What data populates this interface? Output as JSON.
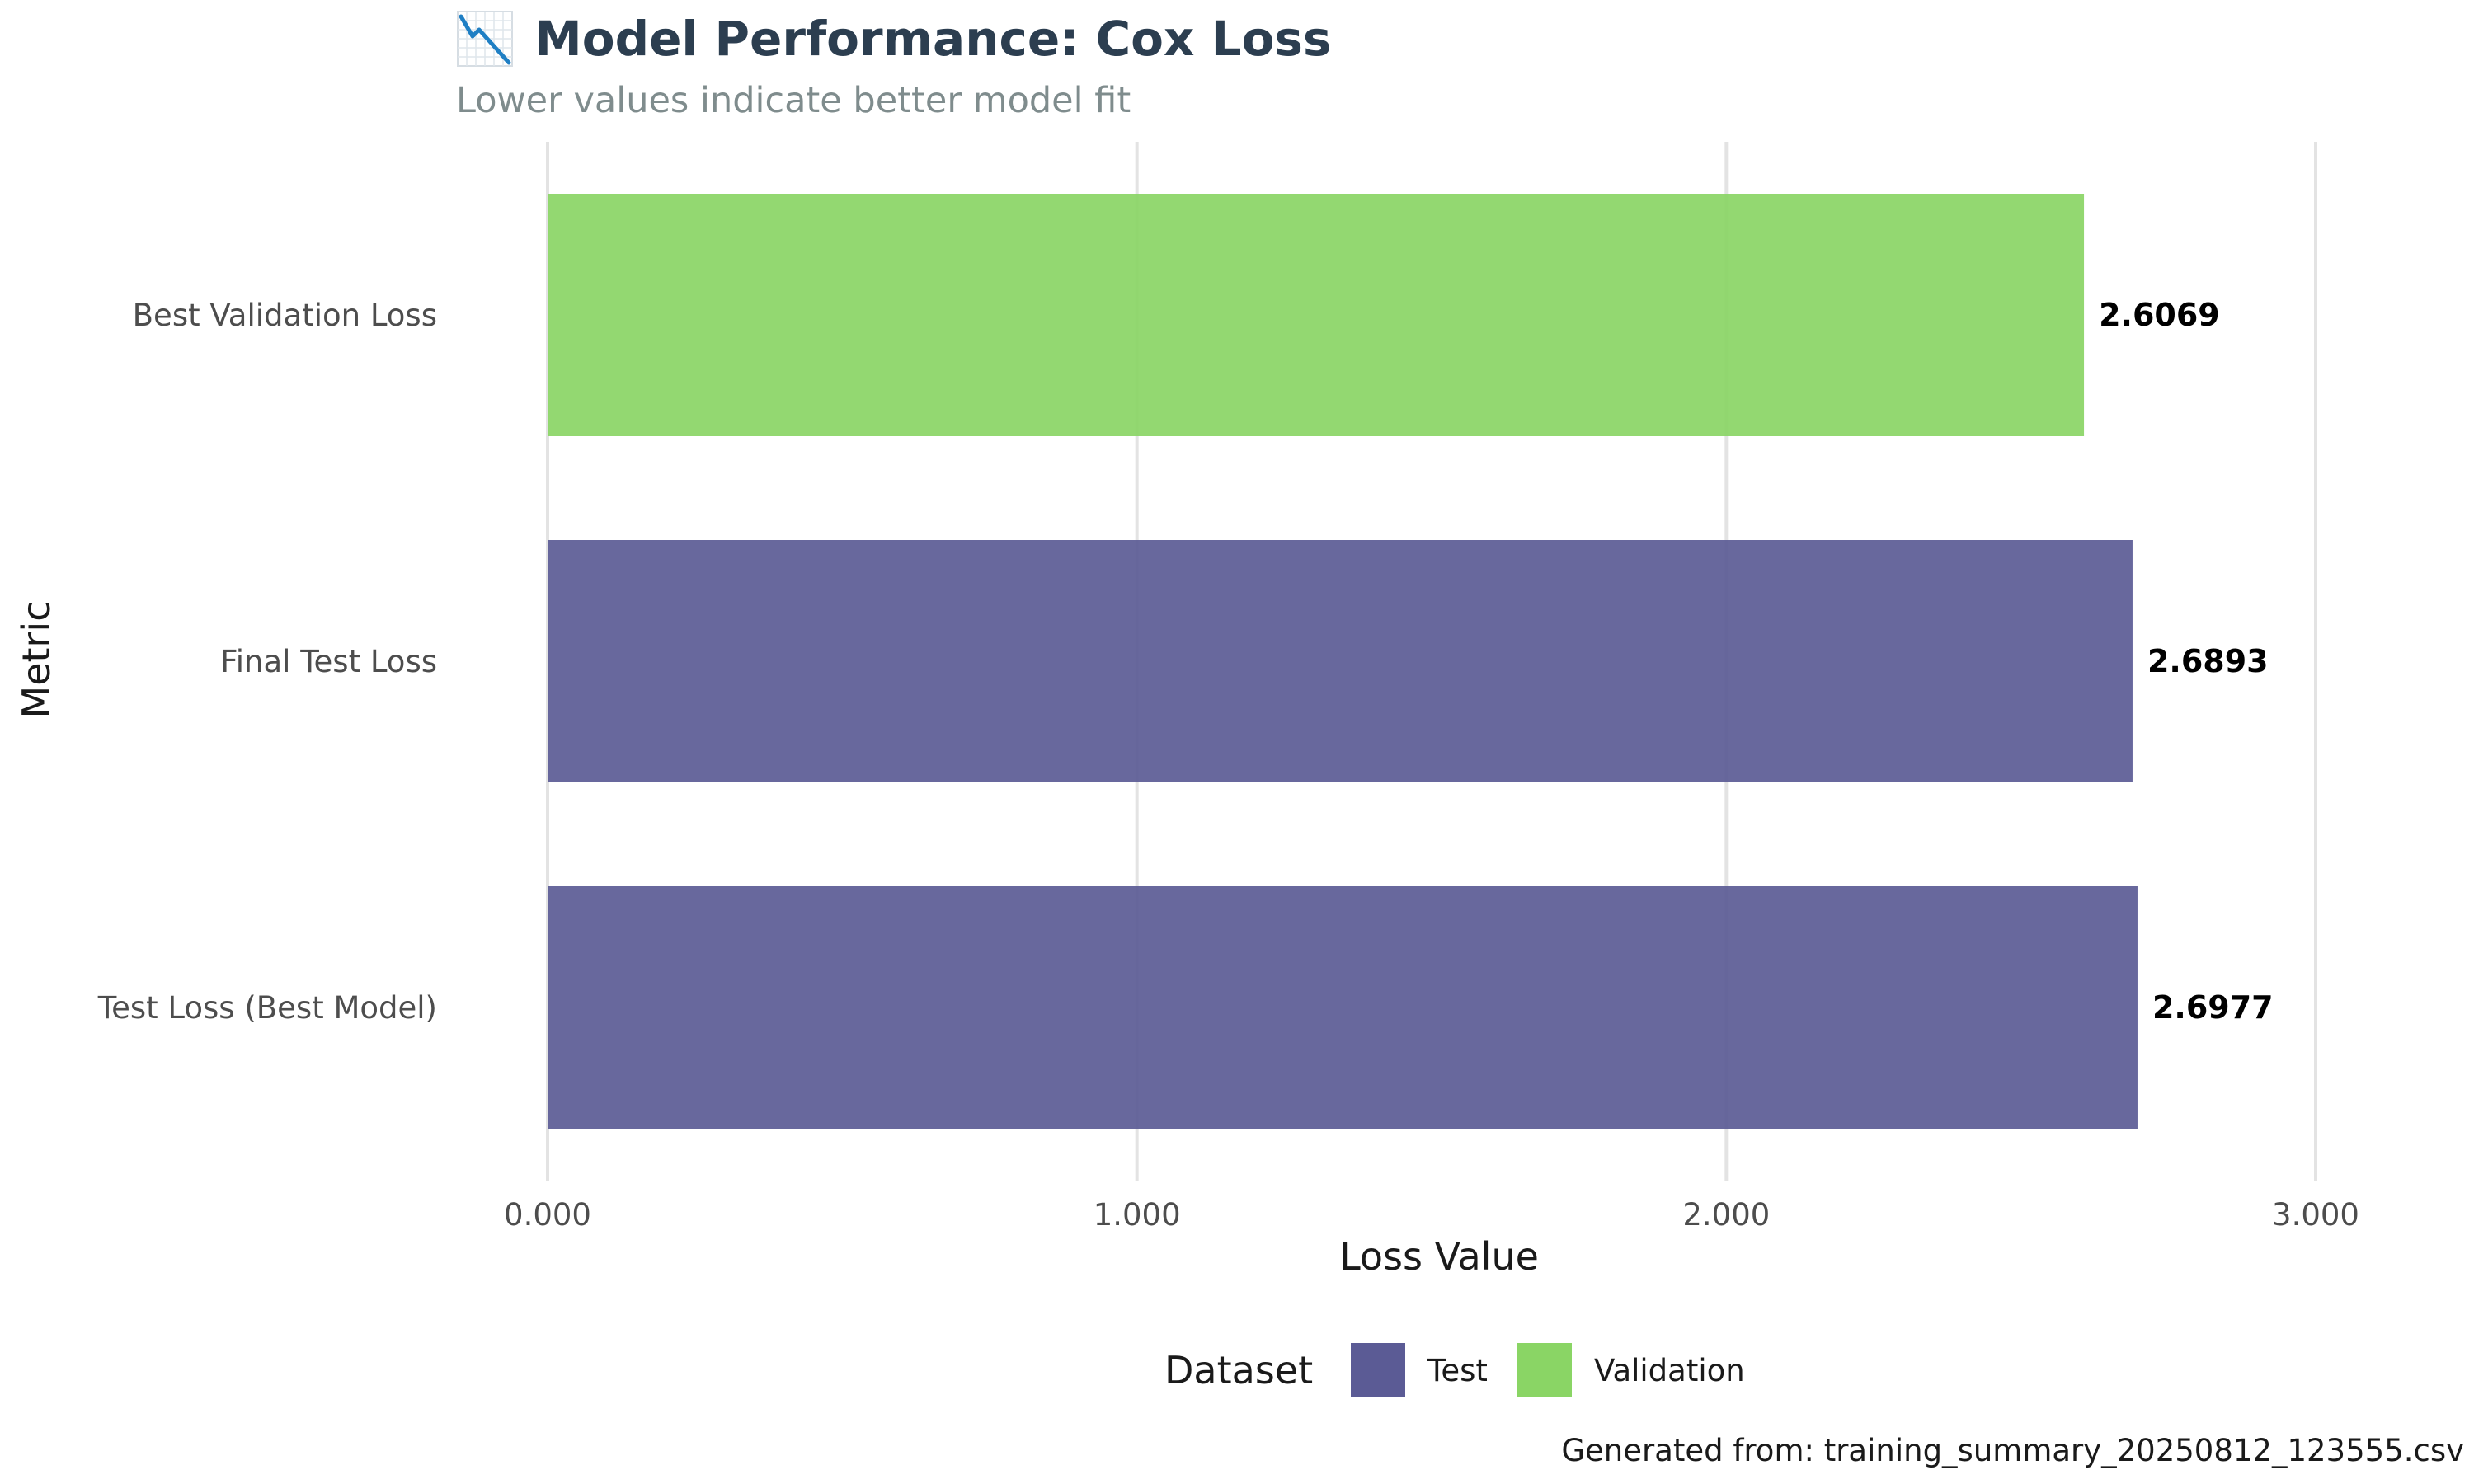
{
  "chart_data": {
    "type": "bar",
    "orientation": "horizontal",
    "title": "Model Performance: Cox Loss",
    "title_icon": "chart-decreasing-icon",
    "subtitle": "Lower values indicate better model fit",
    "xlabel": "Loss Value",
    "ylabel": "Metric",
    "xlim": [
      0,
      3
    ],
    "xticks": [
      "0.000",
      "1.000",
      "2.000",
      "3.000"
    ],
    "xtick_values": [
      0,
      1,
      2,
      3
    ],
    "grid": "vertical major lines only",
    "categories": [
      "Best Validation Loss",
      "Final Test Loss",
      "Test Loss (Best Model)"
    ],
    "values": [
      2.6069,
      2.6893,
      2.6977
    ],
    "data_labels": [
      "2.6069",
      "2.6893",
      "2.6977"
    ],
    "dataset": [
      "Validation",
      "Test",
      "Test"
    ],
    "legend": {
      "title": "Dataset",
      "placement": "bottom",
      "entries": [
        {
          "name": "Test",
          "color": "#5b5b95"
        },
        {
          "name": "Validation",
          "color": "#8ad565"
        }
      ]
    },
    "caption": "Generated from: training_summary_20250812_123555.csv"
  }
}
